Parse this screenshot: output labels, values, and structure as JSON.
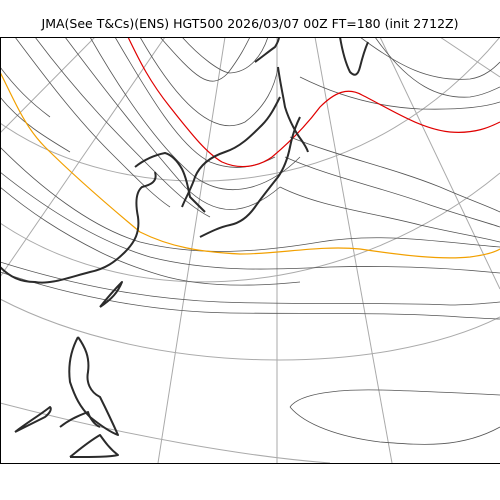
{
  "title": "JMA(See T&Cs)(ENS) HGT500 2026/03/07 00Z FT=180 (init 2712Z)",
  "colors": {
    "coast": "#2b2b2b",
    "graticule": "#aaaaaa",
    "contour": "#555555",
    "highlight_red": "#e00000",
    "highlight_orange": "#f2a000",
    "background": "#ffffff"
  }
}
